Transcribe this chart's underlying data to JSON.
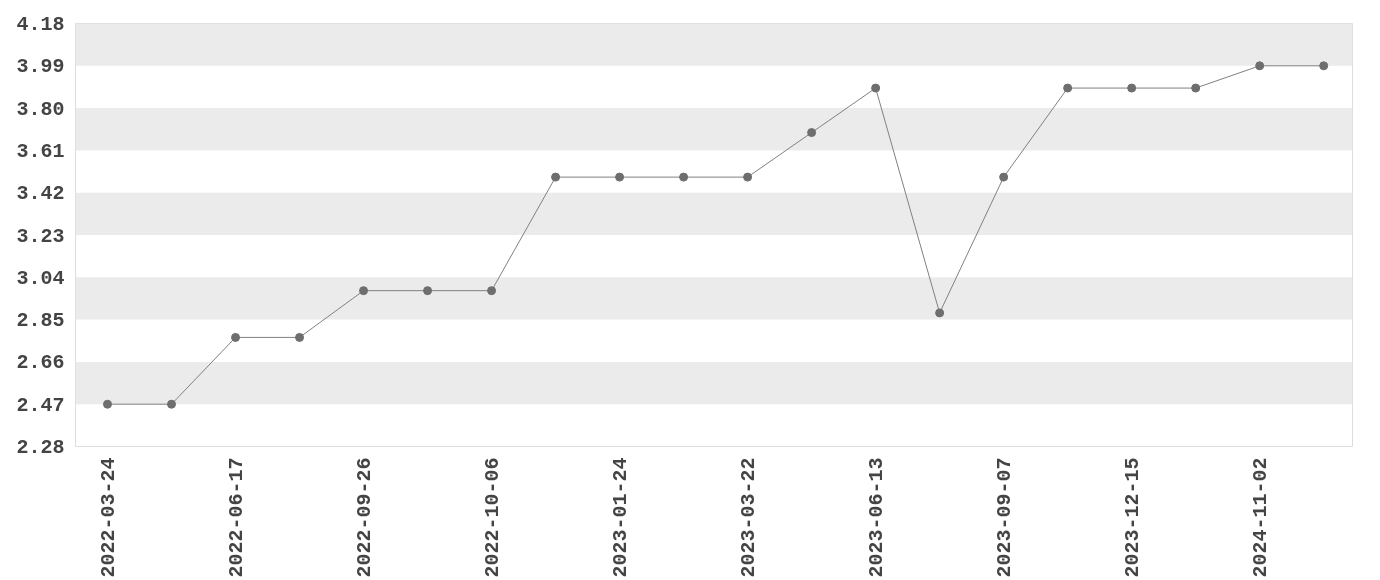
{
  "chart_data": {
    "type": "line",
    "categories": [
      "2022-03-24",
      null,
      "2022-06-17",
      null,
      "2022-09-26",
      null,
      "2022-10-06",
      null,
      "2023-01-24",
      null,
      "2023-03-22",
      null,
      "2023-06-13",
      null,
      "2023-09-07",
      null,
      "2023-12-15",
      null,
      "2024-11-02",
      null
    ],
    "series": [
      {
        "color": "#808080",
        "values": [
          2.47,
          2.47,
          2.77,
          2.77,
          2.98,
          2.98,
          2.98,
          3.49,
          3.49,
          3.49,
          3.49,
          3.69,
          3.89,
          2.88,
          3.49,
          3.89,
          3.89,
          3.89,
          3.99,
          3.99
        ]
      }
    ],
    "ylim": [
      2.28,
      4.18
    ],
    "yticks": [
      2.28,
      2.47,
      2.66,
      2.85,
      3.04,
      3.23,
      3.42,
      3.61,
      {
        "value": 3.8,
        "label": "3.80"
      },
      3.99,
      4.18
    ],
    "bands": [
      {
        "axis": "y",
        "from": 2.47,
        "to": 2.66,
        "color": "#ebebeb"
      },
      {
        "axis": "y",
        "from": 2.85,
        "to": 3.04,
        "color": "#ebebeb"
      },
      {
        "axis": "y",
        "from": 3.23,
        "to": 3.42,
        "color": "#ebebeb"
      },
      {
        "axis": "y",
        "from": 3.61,
        "to": 3.8,
        "color": "#ebebeb"
      },
      {
        "axis": "y",
        "from": 3.99,
        "to": 4.18,
        "color": "#ebebeb"
      }
    ],
    "marker": "circle",
    "line_style": "solid"
  }
}
